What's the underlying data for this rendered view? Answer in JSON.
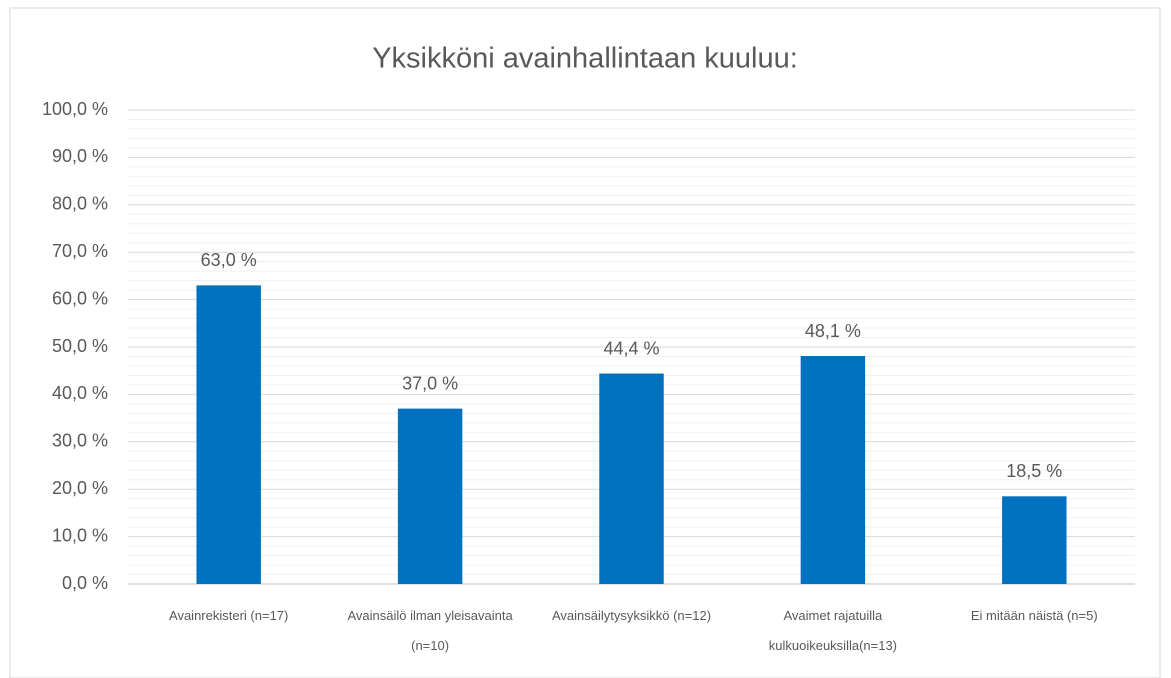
{
  "chart_data": {
    "type": "bar",
    "title": "Yksikköni avainhallintaan kuuluu:",
    "categories": [
      "Avainrekisteri (n=17)",
      "Avainsäilö ilman yleisavainta (n=10)",
      "Avainsäilytysyksikkö  (n=12)",
      "Avaimet rajatuilla kulkuoikeuksilla(n=13)",
      "Ei mitään näistä (n=5)"
    ],
    "values": [
      63.0,
      37.0,
      44.4,
      48.1,
      18.5
    ],
    "value_labels": [
      "63,0 %",
      "37,0 %",
      "44,4 %",
      "48,1 %",
      "18,5 %"
    ],
    "color": "#0070c0",
    "ylim": [
      0,
      100
    ],
    "yticks": [
      {
        "value": 0,
        "label": "0,0 %"
      },
      {
        "value": 10,
        "label": "10,0 %"
      },
      {
        "value": 20,
        "label": "20,0 %"
      },
      {
        "value": 30,
        "label": "30,0 %"
      },
      {
        "value": 40,
        "label": "40,0 %"
      },
      {
        "value": 50,
        "label": "50,0 %"
      },
      {
        "value": 60,
        "label": "60,0 %"
      },
      {
        "value": 70,
        "label": "70,0 %"
      },
      {
        "value": 80,
        "label": "80,0 %"
      },
      {
        "value": 90,
        "label": "90,0 %"
      },
      {
        "value": 100,
        "label": "100,0 %"
      }
    ],
    "grid": true
  }
}
